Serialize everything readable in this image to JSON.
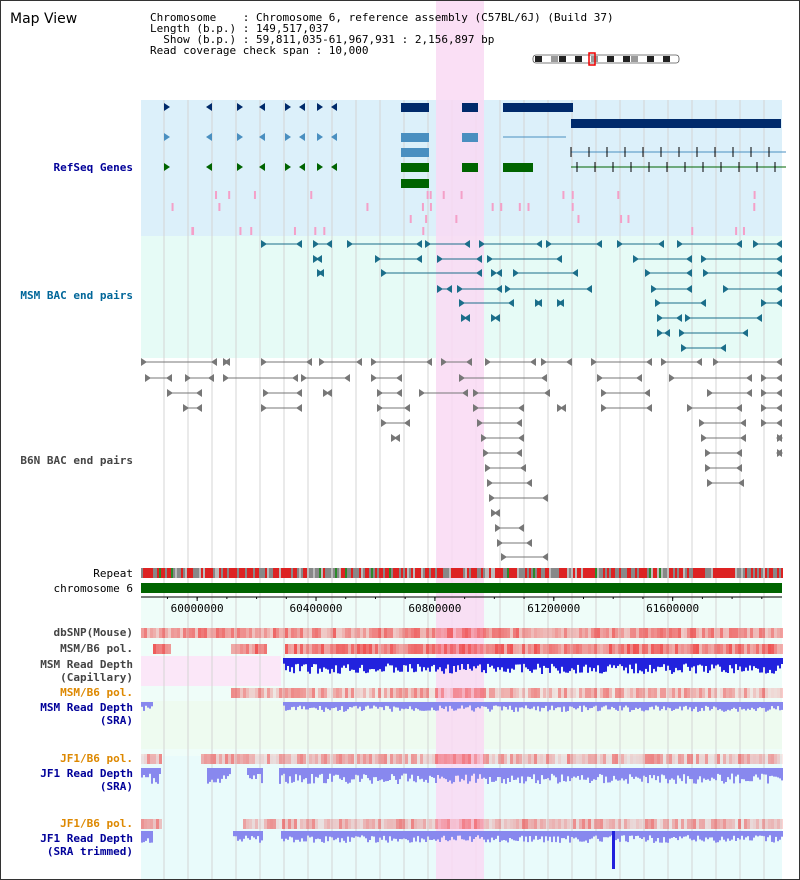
{
  "header": {
    "title": "Map View",
    "chromosome_line": "Chromosome    : Chromosome 6, reference assembly (C57BL/6J) (Build 37)",
    "length_line": "Length (b.p.) : 149,517,037",
    "show_line": "  Show (b.p.) : 59,811,035-61,967,931 : 2,156,897 bp",
    "coverage_line": "Read coverage check span : 10,000"
  },
  "tracks": {
    "refseq": "RefSeq Genes",
    "msm_bac": "MSM BAC end pairs",
    "b6n_bac": "B6N BAC end pairs",
    "repeat": "Repeat",
    "chromosome": "chromosome 6",
    "dbsnp": "dbSNP(Mouse)",
    "msm_b6_pol_1": "MSM/B6 pol.",
    "msm_read_depth_cap": "MSM Read Depth\n(Capillary)",
    "msm_b6_pol_2": "MSM/B6 pol.",
    "msm_read_depth_sra": "MSM Read Depth\n(SRA)",
    "jf1_b6_pol_1": "JF1/B6 pol.",
    "jf1_read_depth_sra": "JF1 Read Depth\n(SRA)",
    "jf1_b6_pol_2": "JF1/B6 pol.",
    "jf1_read_depth_trim": "JF1 Read Depth\n(SRA trimmed)"
  },
  "colors": {
    "refseq_bg": "#dcf0fa",
    "msm_bg": "#e6fbf6",
    "highlight": "#f9d9f3",
    "gene_navy": "#002a6b",
    "gene_steel": "#4a8fc0",
    "gene_green": "#006400",
    "msm_teal": "#1b6e8a",
    "bac_gray": "#777777",
    "depth_blue": "#2222dd",
    "depth_lavender": "#8888ee",
    "pol_red": "#ee3333",
    "label_navy": "#000099",
    "label_teal": "#006699",
    "label_gray": "#333333",
    "label_orange": "#dd8800"
  },
  "axis": {
    "ticks": [
      "60000000",
      "60400000",
      "60800000",
      "61200000",
      "61600000"
    ],
    "tick_values": [
      60000000,
      60400000,
      60800000,
      61200000,
      61600000
    ],
    "start": 59811035,
    "end": 61967931
  }
}
